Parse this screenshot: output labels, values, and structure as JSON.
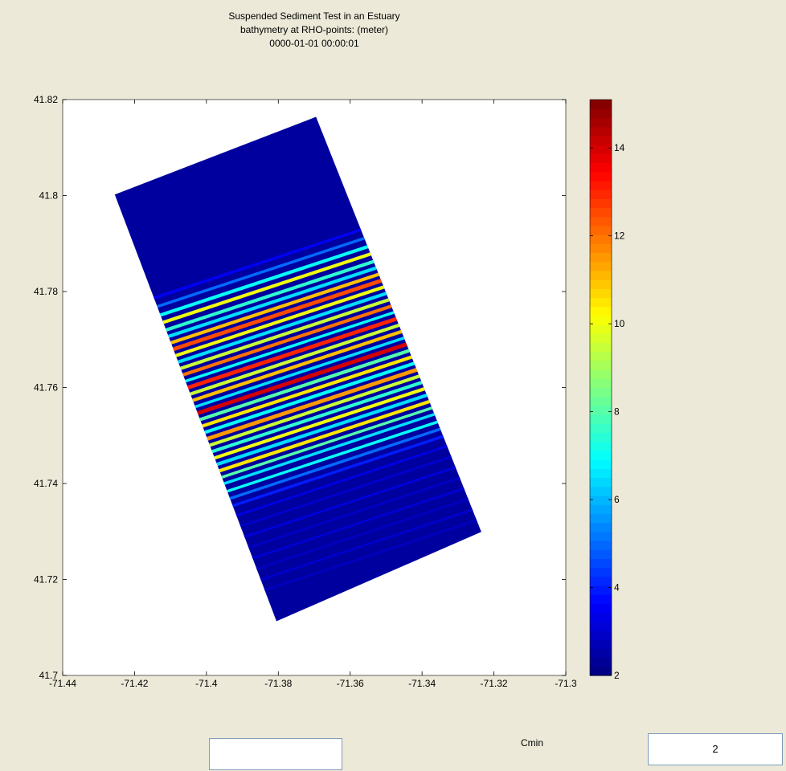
{
  "chart_data": {
    "type": "heatmap",
    "title": [
      "Suspended Sediment Test in an Estuary",
      "bathymetry at RHO-points: (meter)",
      "0000-01-01 00:00:01"
    ],
    "xlim": [
      -71.44,
      -71.3
    ],
    "ylim": [
      41.7,
      41.82
    ],
    "x_ticks": [
      -71.44,
      -71.42,
      -71.4,
      -71.38,
      -71.36,
      -71.34,
      -71.32,
      -71.3
    ],
    "y_ticks": [
      41.7,
      41.72,
      41.74,
      41.76,
      41.78,
      41.8,
      41.82
    ],
    "x_tick_labels": [
      "-71.44",
      "-71.42",
      "-71.4",
      "-71.38",
      "-71.36",
      "-71.34",
      "-71.32",
      "-71.3"
    ],
    "y_tick_labels": [
      "41.7",
      "41.72",
      "41.74",
      "41.76",
      "41.78",
      "41.8",
      "41.82"
    ],
    "grid": false,
    "colormap": "jet",
    "clim": [
      2,
      15.1
    ],
    "colorbar_ticks": [
      2,
      4,
      6,
      8,
      10,
      12,
      14
    ],
    "colorbar_tick_labels": [
      "2",
      "4",
      "6",
      "8",
      "10",
      "12",
      "14"
    ],
    "domain_corners": [
      {
        "x": -71.4255,
        "y": 41.8002
      },
      {
        "x": -71.3695,
        "y": 41.8164
      },
      {
        "x": -71.3235,
        "y": 41.7299
      },
      {
        "x": -71.3805,
        "y": 41.7113
      }
    ],
    "background_depth": 2.4,
    "bands": [
      {
        "y": 41.7885,
        "h": 0.5,
        "depth": 3.5
      },
      {
        "y": 41.7865,
        "h": 0.5,
        "depth": 5.0
      },
      {
        "y": 41.7845,
        "h": 0.6,
        "depth": 7.0
      },
      {
        "y": 41.7828,
        "h": 0.6,
        "depth": 10.0
      },
      {
        "y": 41.781,
        "h": 0.6,
        "depth": 7.5
      },
      {
        "y": 41.7795,
        "h": 0.6,
        "depth": 6.5
      },
      {
        "y": 41.778,
        "h": 0.6,
        "depth": 11.0
      },
      {
        "y": 41.7765,
        "h": 0.7,
        "depth": 12.5
      },
      {
        "y": 41.775,
        "h": 0.6,
        "depth": 10.0
      },
      {
        "y": 41.7735,
        "h": 0.6,
        "depth": 6.5
      },
      {
        "y": 41.772,
        "h": 0.6,
        "depth": 9.5
      },
      {
        "y": 41.7705,
        "h": 0.6,
        "depth": 12.0
      },
      {
        "y": 41.769,
        "h": 0.5,
        "depth": 7.0
      },
      {
        "y": 41.7675,
        "h": 0.7,
        "depth": 13.0
      },
      {
        "y": 41.766,
        "h": 0.6,
        "depth": 9.5
      },
      {
        "y": 41.7645,
        "h": 0.6,
        "depth": 11.0
      },
      {
        "y": 41.763,
        "h": 0.5,
        "depth": 6.5
      },
      {
        "y": 41.7615,
        "h": 0.7,
        "depth": 14.0
      },
      {
        "y": 41.76,
        "h": 0.6,
        "depth": 8.0
      },
      {
        "y": 41.7585,
        "h": 0.6,
        "depth": 10.5
      },
      {
        "y": 41.757,
        "h": 0.6,
        "depth": 7.0
      },
      {
        "y": 41.7555,
        "h": 0.7,
        "depth": 11.5
      },
      {
        "y": 41.754,
        "h": 0.6,
        "depth": 9.5
      },
      {
        "y": 41.7525,
        "h": 0.6,
        "depth": 7.5
      },
      {
        "y": 41.751,
        "h": 0.6,
        "depth": 10.0
      },
      {
        "y": 41.7495,
        "h": 0.6,
        "depth": 6.5
      },
      {
        "y": 41.748,
        "h": 0.6,
        "depth": 10.5
      },
      {
        "y": 41.7465,
        "h": 0.5,
        "depth": 8.0
      },
      {
        "y": 41.745,
        "h": 0.5,
        "depth": 6.5
      },
      {
        "y": 41.7432,
        "h": 0.5,
        "depth": 7.0
      },
      {
        "y": 41.7415,
        "h": 0.5,
        "depth": 5.0
      },
      {
        "y": 41.7398,
        "h": 0.5,
        "depth": 4.0
      },
      {
        "y": 41.7375,
        "h": 0.4,
        "depth": 3.3
      },
      {
        "y": 41.735,
        "h": 0.4,
        "depth": 3.0
      },
      {
        "y": 41.7325,
        "h": 0.4,
        "depth": 3.2
      },
      {
        "y": 41.73,
        "h": 0.4,
        "depth": 2.9
      },
      {
        "y": 41.7275,
        "h": 0.4,
        "depth": 3.1
      },
      {
        "y": 41.725,
        "h": 0.4,
        "depth": 2.8
      },
      {
        "y": 41.7225,
        "h": 0.4,
        "depth": 3.0
      },
      {
        "y": 41.72,
        "h": 0.4,
        "depth": 2.8
      }
    ]
  },
  "controls": {
    "cmin_label": "Cmin",
    "cmin_value": "2",
    "blank_value": ""
  }
}
